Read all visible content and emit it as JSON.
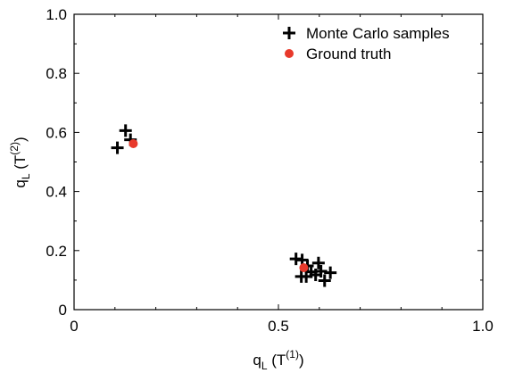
{
  "chart_data": {
    "type": "scatter",
    "xlabel": {
      "base": "q",
      "sub": "L",
      "open": " (T",
      "sup": "(1)",
      "close": ")"
    },
    "ylabel": {
      "base": "q",
      "sub": "L",
      "open": " (T",
      "sup": "(2)",
      "close": ")"
    },
    "xlim": [
      0,
      1
    ],
    "ylim": [
      0,
      1
    ],
    "x_ticks": [
      0,
      0.5,
      1.0
    ],
    "x_tick_labels": [
      "0",
      "0.5",
      "1.0"
    ],
    "y_ticks": [
      0,
      0.2,
      0.4,
      0.6,
      0.8,
      1.0
    ],
    "y_tick_labels": [
      "0",
      "0.2",
      "0.4",
      "0.6",
      "0.8",
      "1.0"
    ],
    "grid": false,
    "legend_position": "top-right",
    "series": [
      {
        "name": "Monte Carlo samples",
        "marker": "plus",
        "color": "#000000",
        "points": [
          [
            0.106,
            0.548
          ],
          [
            0.126,
            0.606
          ],
          [
            0.138,
            0.575
          ],
          [
            0.543,
            0.172
          ],
          [
            0.558,
            0.168
          ],
          [
            0.571,
            0.148
          ],
          [
            0.58,
            0.128
          ],
          [
            0.598,
            0.158
          ],
          [
            0.568,
            0.112
          ],
          [
            0.556,
            0.112
          ],
          [
            0.591,
            0.118
          ],
          [
            0.604,
            0.13
          ],
          [
            0.613,
            0.098
          ],
          [
            0.627,
            0.125
          ]
        ]
      },
      {
        "name": "Ground truth",
        "marker": "circle",
        "color": "#e8392b",
        "points": [
          [
            0.145,
            0.562
          ],
          [
            0.562,
            0.142
          ]
        ]
      }
    ]
  }
}
